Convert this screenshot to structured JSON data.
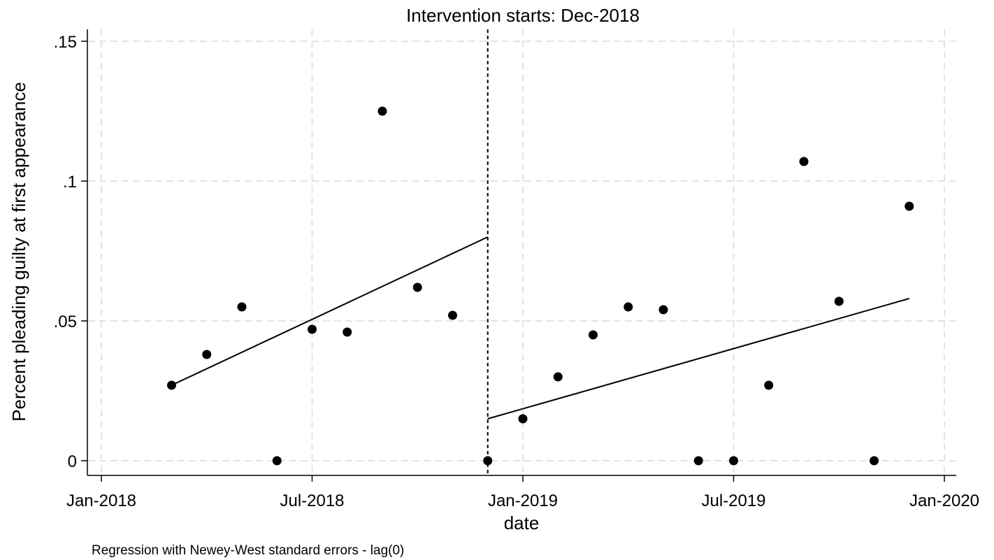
{
  "chart_data": {
    "type": "scatter",
    "title": "Intervention starts: Dec-2018",
    "xlabel": "date",
    "ylabel": "Percent pleading guilty at first appearance",
    "note": "Regression with Newey-West standard errors - lag(0)",
    "xlim": [
      "2018-01",
      "2020-01"
    ],
    "ylim": [
      0,
      0.15
    ],
    "x_ticks": [
      {
        "value": "2018-01",
        "label": "Jan-2018"
      },
      {
        "value": "2018-07",
        "label": "Jul-2018"
      },
      {
        "value": "2019-01",
        "label": "Jan-2019"
      },
      {
        "value": "2019-07",
        "label": "Jul-2019"
      },
      {
        "value": "2020-01",
        "label": "Jan-2020"
      }
    ],
    "y_ticks": [
      {
        "value": 0,
        "label": "0"
      },
      {
        "value": 0.05,
        "label": ".05"
      },
      {
        "value": 0.1,
        "label": ".1"
      },
      {
        "value": 0.15,
        "label": ".15"
      }
    ],
    "grid": true,
    "intervention": "2018-12",
    "series": [
      {
        "points": [
          {
            "x": "2018-03",
            "y": 0.027
          },
          {
            "x": "2018-04",
            "y": 0.038
          },
          {
            "x": "2018-05",
            "y": 0.055
          },
          {
            "x": "2018-06",
            "y": 0.0
          },
          {
            "x": "2018-07",
            "y": 0.047
          },
          {
            "x": "2018-08",
            "y": 0.046
          },
          {
            "x": "2018-09",
            "y": 0.125
          },
          {
            "x": "2018-10",
            "y": 0.062
          },
          {
            "x": "2018-11",
            "y": 0.052
          },
          {
            "x": "2018-12",
            "y": 0.0
          },
          {
            "x": "2019-01",
            "y": 0.015
          },
          {
            "x": "2019-02",
            "y": 0.03
          },
          {
            "x": "2019-03",
            "y": 0.045
          },
          {
            "x": "2019-04",
            "y": 0.055
          },
          {
            "x": "2019-05",
            "y": 0.054
          },
          {
            "x": "2019-06",
            "y": 0.0
          },
          {
            "x": "2019-07",
            "y": 0.0
          },
          {
            "x": "2019-08",
            "y": 0.027
          },
          {
            "x": "2019-09",
            "y": 0.107
          },
          {
            "x": "2019-10",
            "y": 0.057
          },
          {
            "x": "2019-11",
            "y": 0.0
          },
          {
            "x": "2019-12",
            "y": 0.091
          }
        ]
      }
    ],
    "fit_lines": [
      {
        "from": {
          "x": "2018-03",
          "y": 0.027
        },
        "to": {
          "x": "2018-12",
          "y": 0.08
        }
      },
      {
        "from": {
          "x": "2018-12",
          "y": 0.015
        },
        "to": {
          "x": "2019-12",
          "y": 0.058
        }
      }
    ]
  }
}
